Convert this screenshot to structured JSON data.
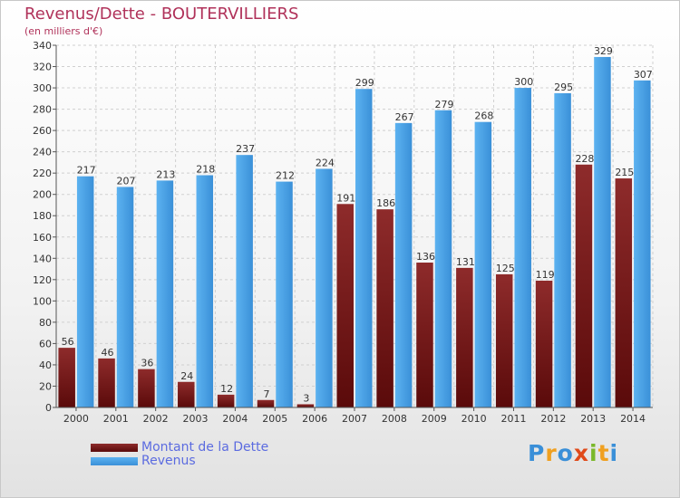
{
  "title": "Revenus/Dette - BOUTERVILLIERS",
  "subtitle": "(en milliers d'€)",
  "legend": {
    "debt": "Montant de la Dette",
    "revenue": "Revenus"
  },
  "logo": [
    "P",
    "r",
    "o",
    "x",
    "i",
    "t",
    "i"
  ],
  "colors": {
    "debt": "#7a1f1f",
    "revenue": "#4aa3e6",
    "title": "#b0325a",
    "legend_text": "#5b6be0"
  },
  "chart_data": {
    "type": "bar",
    "categories": [
      "2000",
      "2001",
      "2002",
      "2003",
      "2004",
      "2005",
      "2006",
      "2007",
      "2008",
      "2009",
      "2010",
      "2011",
      "2012",
      "2013",
      "2014"
    ],
    "series": [
      {
        "name": "Montant de la Dette",
        "values": [
          56,
          46,
          36,
          24,
          12,
          7,
          3,
          191,
          186,
          136,
          131,
          125,
          119,
          228,
          215
        ]
      },
      {
        "name": "Revenus",
        "values": [
          217,
          207,
          213,
          218,
          237,
          212,
          224,
          299,
          267,
          279,
          268,
          300,
          295,
          329,
          307
        ]
      }
    ],
    "ylim": [
      0,
      340
    ],
    "yticks": [
      0,
      20,
      40,
      60,
      80,
      100,
      120,
      140,
      160,
      180,
      200,
      220,
      240,
      260,
      280,
      300,
      320,
      340
    ],
    "grid": true
  }
}
